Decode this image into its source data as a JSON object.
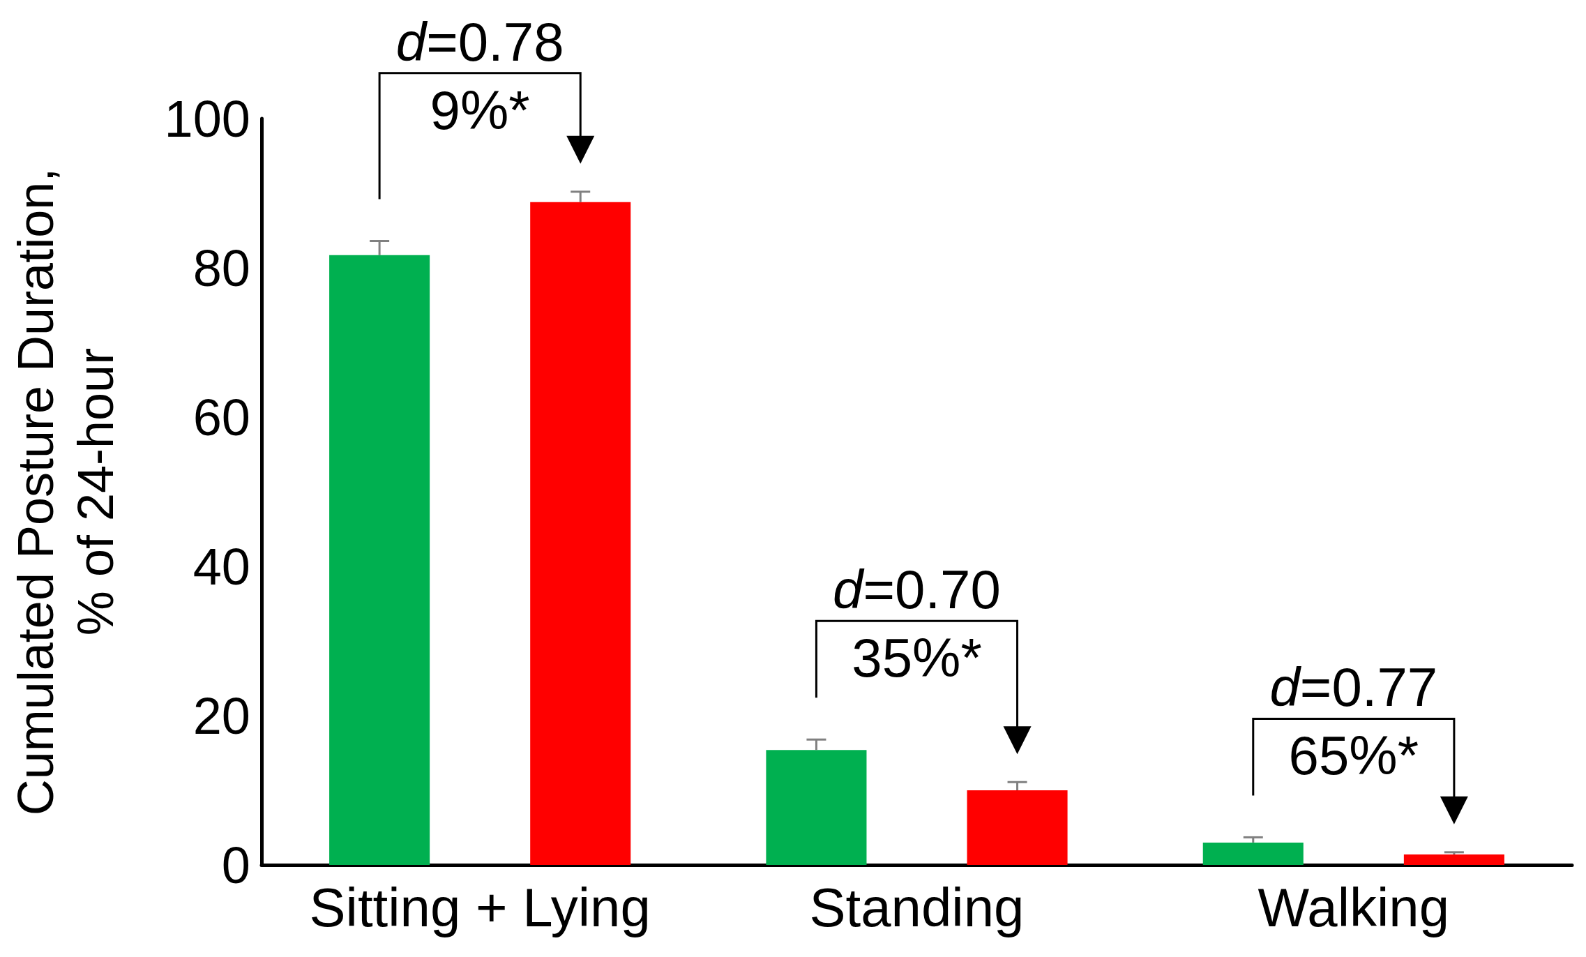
{
  "chart_data": {
    "type": "bar",
    "ylabel": "Cumulated Posture Duration,\n% of 24-hour",
    "categories": [
      "Sitting + Lying",
      "Standing",
      "Walking"
    ],
    "series": [
      {
        "color": "#00b050",
        "values": [
          81.7,
          15.4,
          3.0
        ],
        "errors": [
          [
            81.7,
            83.6
          ],
          [
            15.4,
            16.8
          ],
          [
            3.0,
            3.7
          ]
        ]
      },
      {
        "color": "#ff0000",
        "values": [
          88.8,
          10.0,
          1.4
        ],
        "errors": [
          [
            88.8,
            90.2
          ],
          [
            10.0,
            11.1
          ],
          [
            1.4,
            1.7
          ]
        ]
      }
    ],
    "ylim": [
      0,
      100
    ],
    "yticks": [
      0,
      20,
      40,
      60,
      80,
      100
    ],
    "grid": false,
    "annotations": [
      "d=0.78",
      "9%*",
      "d=0.70",
      "35%*",
      "d=0.77",
      "65%*"
    ]
  }
}
